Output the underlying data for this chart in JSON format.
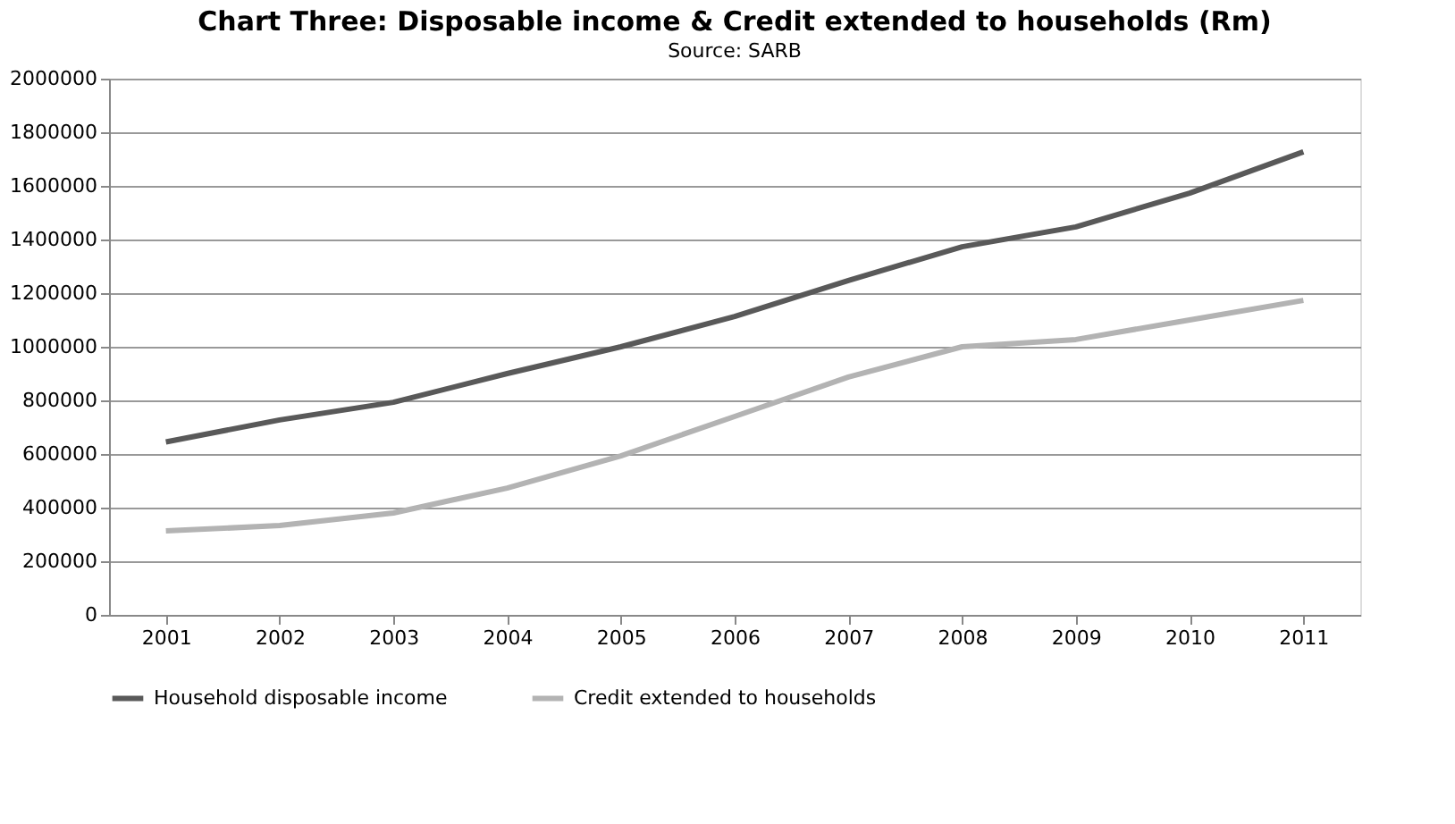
{
  "chart_data": {
    "type": "line",
    "title": "Chart Three: Disposable  income & Credit extended to households  (Rm)",
    "subtitle": "Source: SARB",
    "categories": [
      "2001",
      "2002",
      "2003",
      "2004",
      "2005",
      "2006",
      "2007",
      "2008",
      "2009",
      "2010",
      "2011"
    ],
    "series": [
      {
        "name": "Household disposable income",
        "color": "#595959",
        "values": [
          645000,
          727000,
          793000,
          900000,
          1000000,
          1113000,
          1247000,
          1373000,
          1447000,
          1573000,
          1727000
        ]
      },
      {
        "name": "Credit extended to households",
        "color": "#b3b3b3",
        "values": [
          313000,
          333000,
          380000,
          473000,
          593000,
          740000,
          887000,
          1000000,
          1027000,
          1100000,
          1173000
        ]
      }
    ],
    "ylim": [
      0,
      2000000
    ],
    "yticks": [
      0,
      200000,
      400000,
      600000,
      800000,
      1000000,
      1200000,
      1400000,
      1600000,
      1800000,
      2000000
    ],
    "grid": "y",
    "legend": "bottom",
    "marker": "none",
    "line_style": "solid"
  }
}
